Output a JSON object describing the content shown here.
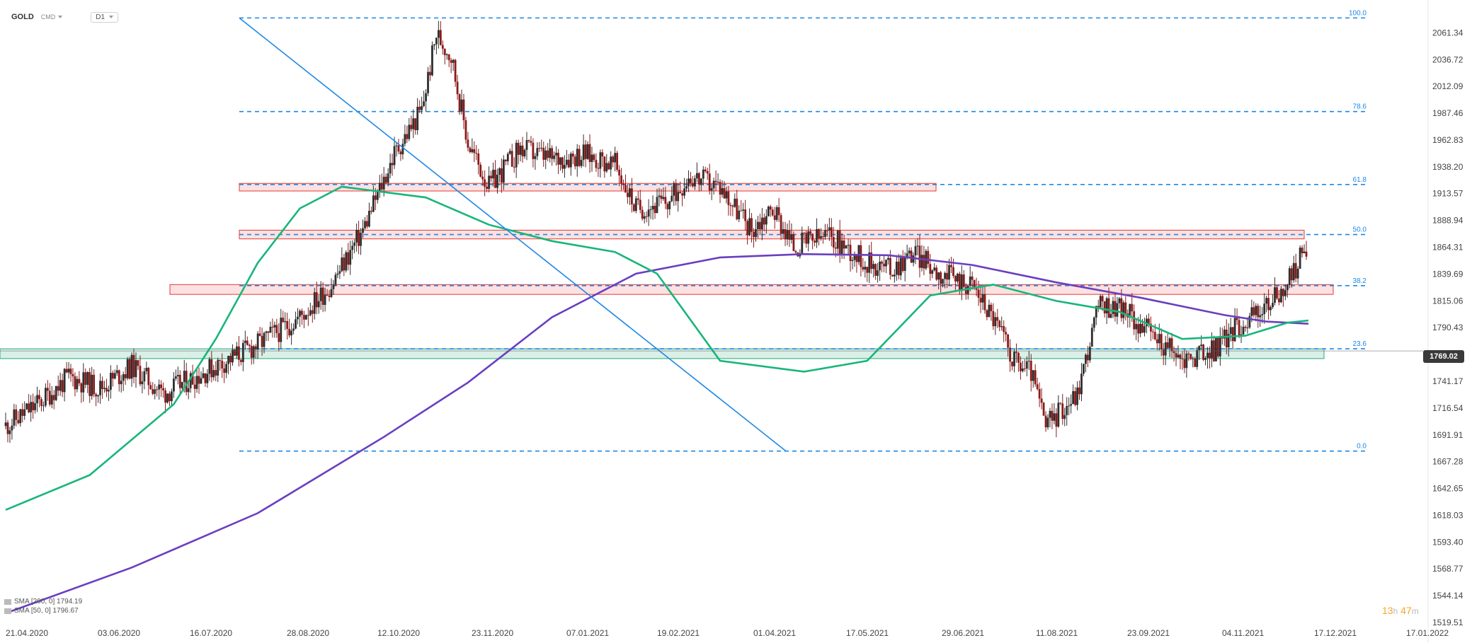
{
  "header": {
    "symbol": "GOLD",
    "market": "CMD",
    "timeframe": "D1"
  },
  "price_axis": {
    "current_price": "1769.02",
    "ticks": [
      "2061.34",
      "2036.72",
      "2012.09",
      "1987.46",
      "1962.83",
      "1938.20",
      "1913.57",
      "1888.94",
      "1864.31",
      "1839.69",
      "1815.06",
      "1790.43",
      "1741.17",
      "1716.54",
      "1691.91",
      "1667.28",
      "1642.65",
      "1618.03",
      "1593.40",
      "1568.77",
      "1544.14",
      "1519.51"
    ]
  },
  "time_axis": {
    "ticks": [
      "21.04.2020",
      "03.06.2020",
      "16.07.2020",
      "28.08.2020",
      "12.10.2020",
      "23.11.2020",
      "07.01.2021",
      "19.02.2021",
      "01.04.2021",
      "17.05.2021",
      "29.06.2021",
      "11.08.2021",
      "23.09.2021",
      "04.11.2021",
      "17.12.2021",
      "17.01.2022"
    ]
  },
  "legend": {
    "sma200": "SMA  [200,  0]  1794.19",
    "sma50": "SMA  [50,  0]  1796.67"
  },
  "timer": {
    "hours": "13",
    "h_unit": "h",
    "minutes": "47",
    "m_unit": "m"
  },
  "colors": {
    "bull": "#2e2e2e",
    "bear": "#8b1a1a",
    "sma50": "#18b67a",
    "sma200": "#6a3fbf",
    "fib": "#1e88e5",
    "zone_red": "#e53935",
    "zone_green": "#2aa87a"
  },
  "chart_data": {
    "type": "candlestick",
    "instrument": "GOLD",
    "timeframe": "D1",
    "ylim": [
      1519.51,
      2085
    ],
    "x_categories": [
      "21.04.2020",
      "03.06.2020",
      "16.07.2020",
      "28.08.2020",
      "12.10.2020",
      "23.11.2020",
      "07.01.2021",
      "19.02.2021",
      "01.04.2021",
      "17.05.2021",
      "29.06.2021",
      "11.08.2021",
      "23.09.2021",
      "04.11.2021",
      "17.12.2021",
      "17.01.2022"
    ],
    "fibonacci": {
      "high": 2075,
      "low": 1677,
      "levels": [
        {
          "label": "100.0",
          "value": 2075
        },
        {
          "label": "78.6",
          "value": 1989
        },
        {
          "label": "61.8",
          "value": 1922
        },
        {
          "label": "50.0",
          "value": 1876
        },
        {
          "label": "38.2",
          "value": 1829
        },
        {
          "label": "23.6",
          "value": 1771
        },
        {
          "label": "0.0",
          "value": 1677
        }
      ]
    },
    "trendline": {
      "from": [
        "16.07.2020",
        2075
      ],
      "to": [
        "01.04.2021",
        1677
      ]
    },
    "resistance_zones": [
      {
        "low": 1916,
        "high": 1923
      },
      {
        "low": 1872,
        "high": 1880
      },
      {
        "low": 1821,
        "high": 1830
      }
    ],
    "support_zone": {
      "low": 1762,
      "high": 1771
    },
    "sma200_path": [
      [
        0,
        1528
      ],
      [
        60,
        1570
      ],
      [
        120,
        1620
      ],
      [
        180,
        1690
      ],
      [
        220,
        1740
      ],
      [
        260,
        1800
      ],
      [
        300,
        1840
      ],
      [
        340,
        1855
      ],
      [
        380,
        1858
      ],
      [
        420,
        1857
      ],
      [
        460,
        1848
      ],
      [
        500,
        1832
      ],
      [
        540,
        1818
      ],
      [
        580,
        1802
      ],
      [
        600,
        1796
      ],
      [
        620,
        1794
      ]
    ],
    "sma50_path": [
      [
        0,
        1623
      ],
      [
        40,
        1655
      ],
      [
        80,
        1720
      ],
      [
        100,
        1780
      ],
      [
        120,
        1850
      ],
      [
        140,
        1900
      ],
      [
        160,
        1920
      ],
      [
        200,
        1910
      ],
      [
        230,
        1885
      ],
      [
        260,
        1870
      ],
      [
        290,
        1860
      ],
      [
        310,
        1840
      ],
      [
        340,
        1760
      ],
      [
        380,
        1750
      ],
      [
        410,
        1760
      ],
      [
        440,
        1820
      ],
      [
        470,
        1830
      ],
      [
        500,
        1815
      ],
      [
        530,
        1805
      ],
      [
        560,
        1780
      ],
      [
        590,
        1783
      ],
      [
        610,
        1795
      ],
      [
        620,
        1797
      ]
    ],
    "last_price": 1769.02
  }
}
